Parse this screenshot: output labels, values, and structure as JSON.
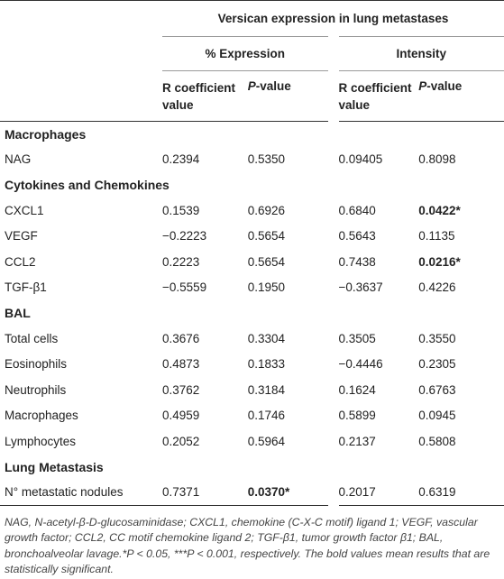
{
  "header": {
    "group_title": "Versican expression in lung metastases",
    "sub1": "% Expression",
    "sub2": "Intensity",
    "col1": "R coefficient value",
    "col2_italic": "P",
    "col2_rest": "-value",
    "col3": "R coefficient value",
    "col4_italic": "P",
    "col4_rest": "-value"
  },
  "sections": [
    {
      "title": "Macrophages",
      "rows": [
        {
          "label": "NAG",
          "v": [
            "0.2394",
            "0.5350",
            "0.09405",
            "0.8098"
          ],
          "bold": [
            false,
            false,
            false,
            false
          ]
        }
      ]
    },
    {
      "title": "Cytokines and Chemokines",
      "rows": [
        {
          "label": "CXCL1",
          "v": [
            "0.1539",
            "0.6926",
            "0.6840",
            "0.0422*"
          ],
          "bold": [
            false,
            false,
            false,
            true
          ]
        },
        {
          "label": "VEGF",
          "v": [
            "−0.2223",
            "0.5654",
            "0.5643",
            "0.1135"
          ],
          "bold": [
            false,
            false,
            false,
            false
          ]
        },
        {
          "label": "CCL2",
          "v": [
            "0.2223",
            "0.5654",
            "0.7438",
            "0.0216*"
          ],
          "bold": [
            false,
            false,
            false,
            true
          ]
        },
        {
          "label": "TGF-β1",
          "v": [
            "−0.5559",
            "0.1950",
            "−0.3637",
            "0.4226"
          ],
          "bold": [
            false,
            false,
            false,
            false
          ]
        }
      ]
    },
    {
      "title": "BAL",
      "rows": [
        {
          "label": "Total cells",
          "v": [
            "0.3676",
            "0.3304",
            "0.3505",
            "0.3550"
          ],
          "bold": [
            false,
            false,
            false,
            false
          ]
        },
        {
          "label": "Eosinophils",
          "v": [
            "0.4873",
            "0.1833",
            "−0.4446",
            "0.2305"
          ],
          "bold": [
            false,
            false,
            false,
            false
          ]
        },
        {
          "label": "Neutrophils",
          "v": [
            "0.3762",
            "0.3184",
            "0.1624",
            "0.6763"
          ],
          "bold": [
            false,
            false,
            false,
            false
          ]
        },
        {
          "label": "Macrophages",
          "v": [
            "0.4959",
            "0.1746",
            "0.5899",
            "0.0945"
          ],
          "bold": [
            false,
            false,
            false,
            false
          ]
        },
        {
          "label": "Lymphocytes",
          "v": [
            "0.2052",
            "0.5964",
            "0.2137",
            "0.5808"
          ],
          "bold": [
            false,
            false,
            false,
            false
          ]
        }
      ]
    },
    {
      "title": "Lung Metastasis",
      "rows": [
        {
          "label": "N° metastatic nodules",
          "v": [
            "0.7371",
            "0.0370*",
            "0.2017",
            "0.6319"
          ],
          "bold": [
            false,
            true,
            false,
            false
          ]
        }
      ]
    }
  ],
  "footnote": "NAG, N-acetyl-β-D-glucosaminidase; CXCL1, chemokine (C-X-C motif) ligand 1; VEGF, vascular growth factor; CCL2, CC motif chemokine ligand 2; TGF-β1, tumor growth factor β1; BAL, bronchoalveolar lavage.*P < 0.05, ***P < 0.001, respectively. The bold values mean results that are statistically significant."
}
